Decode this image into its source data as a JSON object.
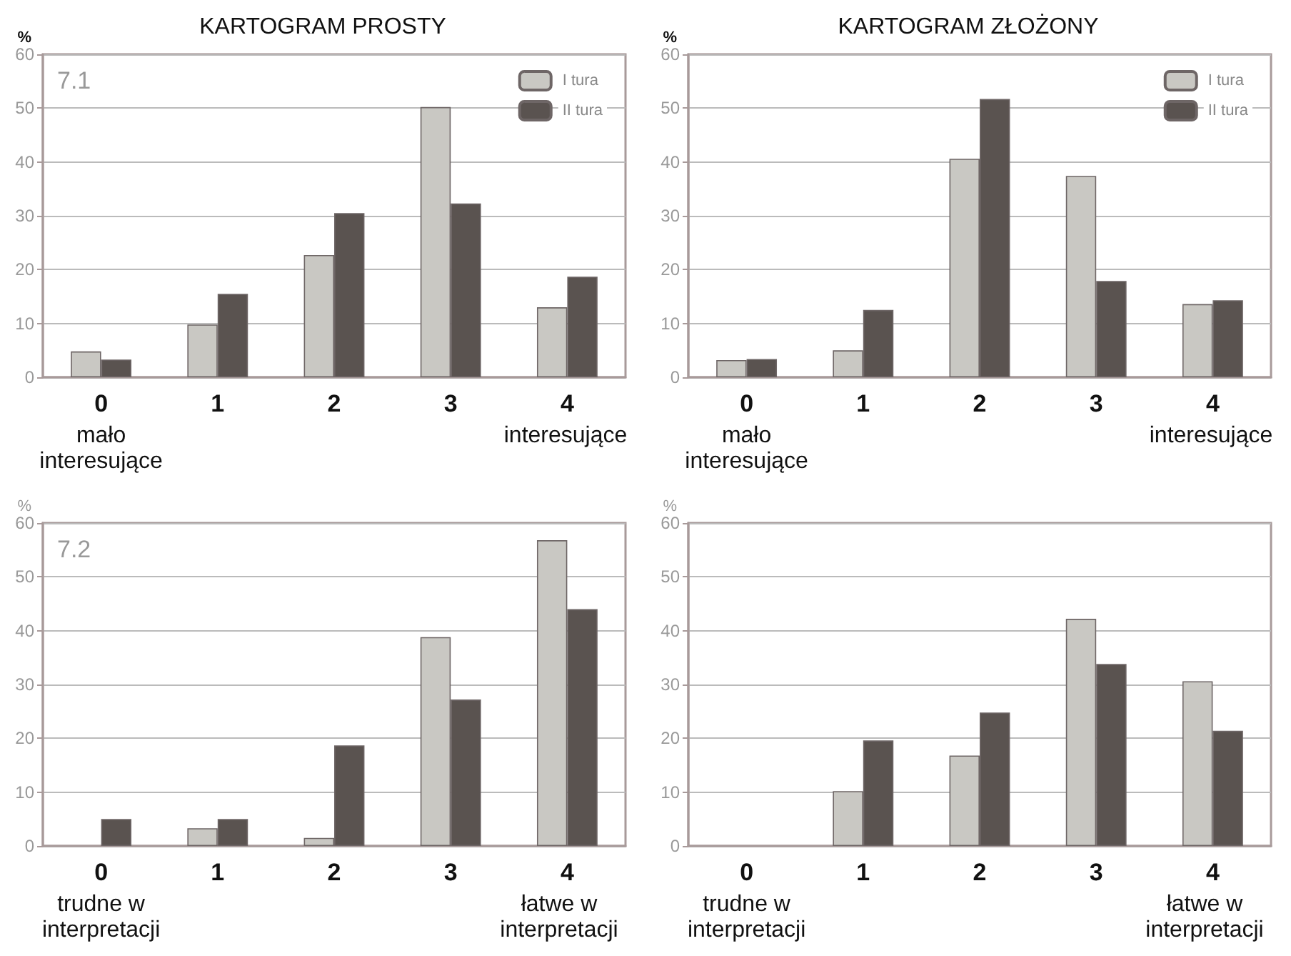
{
  "chart_data": [
    {
      "type": "bar",
      "title": "KARTOGRAM PROSTY",
      "ylabel": "%",
      "categories": [
        "0",
        "1",
        "2",
        "3",
        "4"
      ],
      "ylim": [
        0,
        60
      ],
      "yticks": [
        0,
        10,
        20,
        30,
        40,
        50,
        60
      ],
      "grid": "y",
      "legend": "top right",
      "annotations": [
        "7.1",
        "mało\ninteresujące",
        "interesujące"
      ],
      "series": [
        {
          "name": "I tura",
          "color": "#c9c8c3",
          "values": [
            4.8,
            9.8,
            22.7,
            50.2,
            13
          ]
        },
        {
          "name": "II tura",
          "color": "#5a5350",
          "values": [
            3.3,
            15.5,
            30.5,
            32.3,
            18.7
          ]
        }
      ]
    },
    {
      "type": "bar",
      "title": "KARTOGRAM ZŁOŻONY",
      "ylabel": "%",
      "categories": [
        "0",
        "1",
        "2",
        "3",
        "4"
      ],
      "ylim": [
        0,
        60
      ],
      "yticks": [
        0,
        10,
        20,
        30,
        40,
        50,
        60
      ],
      "grid": "y",
      "legend": "top right",
      "annotations": [
        "mało\ninteresujące",
        "interesujące"
      ],
      "series": [
        {
          "name": "I tura",
          "color": "#c9c8c3",
          "values": [
            3.2,
            5,
            40.6,
            37.4,
            13.6
          ]
        },
        {
          "name": "II tura",
          "color": "#5a5350",
          "values": [
            3.4,
            12.5,
            51.7,
            17.9,
            14.3
          ]
        }
      ]
    },
    {
      "type": "bar",
      "ylabel": "%",
      "categories": [
        "0",
        "1",
        "2",
        "3",
        "4"
      ],
      "ylim": [
        0,
        60
      ],
      "yticks": [
        0,
        10,
        20,
        30,
        40,
        50,
        60
      ],
      "grid": "y",
      "annotations": [
        "7.2",
        "trudne w\ninterpretacji",
        "łatwe w\ninterpretacji"
      ],
      "series": [
        {
          "color": "#c9c8c3",
          "values": [
            0,
            3.3,
            1.5,
            38.8,
            56.8
          ]
        },
        {
          "color": "#5a5350",
          "values": [
            5,
            5,
            18.7,
            27.2,
            44
          ]
        }
      ]
    },
    {
      "type": "bar",
      "ylabel": "%",
      "categories": [
        "0",
        "1",
        "2",
        "3",
        "4"
      ],
      "ylim": [
        0,
        60
      ],
      "yticks": [
        0,
        10,
        20,
        30,
        40,
        50,
        60
      ],
      "grid": "y",
      "annotations": [
        "trudne w\ninterpretacji",
        "łatwe w\ninterpretacji"
      ],
      "series": [
        {
          "color": "#c9c8c3",
          "values": [
            0,
            10.2,
            16.8,
            42.2,
            30.6
          ]
        },
        {
          "color": "#5a5350",
          "values": [
            0,
            19.6,
            24.8,
            33.8,
            21.4
          ]
        }
      ]
    }
  ]
}
